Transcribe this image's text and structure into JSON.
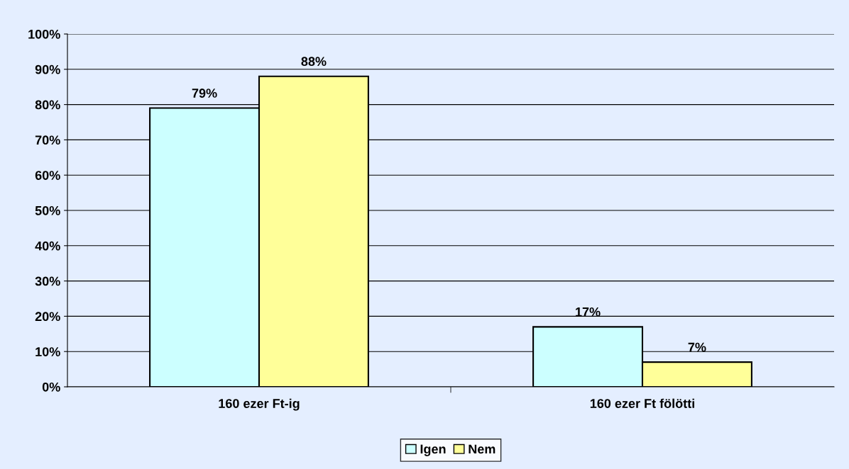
{
  "chart_data": {
    "type": "bar",
    "categories": [
      "160 ezer Ft-ig",
      "160 ezer Ft fölötti"
    ],
    "series": [
      {
        "name": "Igen",
        "color": "#ccffff",
        "values": [
          79,
          17
        ],
        "value_labels": [
          "79%",
          "17%"
        ]
      },
      {
        "name": "Nem",
        "color": "#ffff99",
        "values": [
          88,
          7
        ],
        "value_labels": [
          "88%",
          "7%"
        ]
      }
    ],
    "ylim": [
      0,
      100
    ],
    "yticks": [
      {
        "value": 0,
        "label": "0%"
      },
      {
        "value": 10,
        "label": "10%"
      },
      {
        "value": 20,
        "label": "20%"
      },
      {
        "value": 30,
        "label": "30%"
      },
      {
        "value": 40,
        "label": "40%"
      },
      {
        "value": 50,
        "label": "50%"
      },
      {
        "value": 60,
        "label": "60%"
      },
      {
        "value": 70,
        "label": "70%"
      },
      {
        "value": 80,
        "label": "80%"
      },
      {
        "value": 90,
        "label": "90%"
      },
      {
        "value": 100,
        "label": "100%"
      }
    ],
    "grid": "y",
    "legend": "bottom"
  }
}
